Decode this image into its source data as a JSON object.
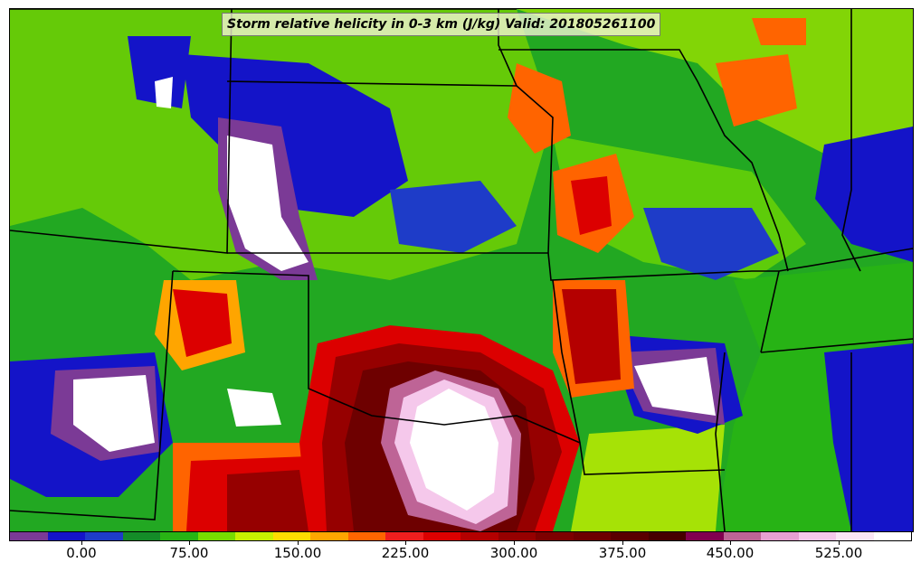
{
  "title": "Storm relative helicity in 0-3 km (J/kg) Valid: 201805261100",
  "colorbar": {
    "colors": [
      "#7b3a96",
      "#1414c8",
      "#1e3cc8",
      "#148c28",
      "#28b414",
      "#78dc00",
      "#c8f000",
      "#ffdc00",
      "#ffa500",
      "#ff6400",
      "#f01e1e",
      "#dc0000",
      "#b40000",
      "#960000",
      "#7d0000",
      "#6e0000",
      "#5a0000",
      "#460000",
      "#820050",
      "#be6496",
      "#e6a0d2",
      "#f5c8eb",
      "#fae6f5",
      "#ffffff"
    ],
    "tick_labels": [
      "0.00",
      "75.00",
      "150.00",
      "225.00",
      "300.00",
      "375.00",
      "450.00",
      "525.00"
    ]
  },
  "map": {
    "features": "contour shading with state boundary lines"
  }
}
